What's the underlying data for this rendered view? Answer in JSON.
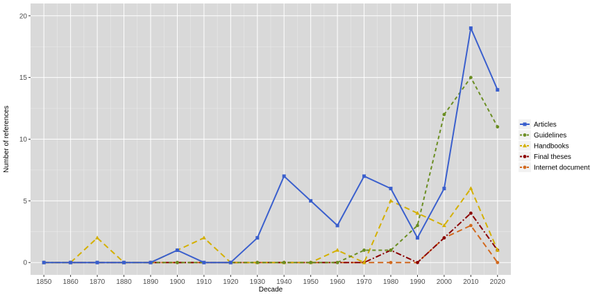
{
  "chart_data": {
    "type": "line",
    "xlabel": "Decade",
    "ylabel": "Number of references",
    "x": [
      1850,
      1860,
      1870,
      1880,
      1890,
      1900,
      1910,
      1920,
      1930,
      1940,
      1950,
      1960,
      1970,
      1980,
      1990,
      2000,
      2010,
      2020
    ],
    "xlim": [
      1845,
      2025
    ],
    "ylim": [
      -1,
      21
    ],
    "yticks": [
      0,
      5,
      10,
      15,
      20
    ],
    "grid": true,
    "legend_position": "right",
    "series": [
      {
        "name": "Articles",
        "color": "#3a5fcd",
        "dash": "solid",
        "marker": "square",
        "values": [
          0,
          0,
          0,
          0,
          0,
          1,
          0,
          0,
          2,
          7,
          5,
          3,
          7,
          6,
          2,
          6,
          19,
          14
        ]
      },
      {
        "name": "Guidelines",
        "color": "#6b8e23",
        "dash": "dashed",
        "marker": "circle",
        "values": [
          0,
          0,
          0,
          0,
          0,
          0,
          0,
          0,
          0,
          0,
          0,
          0,
          1,
          1,
          3,
          12,
          15,
          11
        ]
      },
      {
        "name": "Handbooks",
        "color": "#d4b000",
        "dash": "longdash",
        "marker": "triangle",
        "values": [
          0,
          0,
          2,
          0,
          0,
          1,
          2,
          0,
          0,
          0,
          0,
          1,
          0,
          5,
          4,
          3,
          6,
          1
        ]
      },
      {
        "name": "Final theses",
        "color": "#8b0000",
        "dash": "dashdot",
        "marker": "circle",
        "values": [
          0,
          0,
          0,
          0,
          0,
          0,
          0,
          0,
          0,
          0,
          0,
          0,
          0,
          1,
          0,
          2,
          4,
          1
        ]
      },
      {
        "name": "Internet documents",
        "color": "#d2691e",
        "dash": "longdash",
        "marker": "circle",
        "values": [
          0,
          0,
          0,
          0,
          0,
          0,
          0,
          0,
          0,
          0,
          0,
          0,
          0,
          0,
          0,
          2,
          3,
          0
        ]
      }
    ]
  }
}
